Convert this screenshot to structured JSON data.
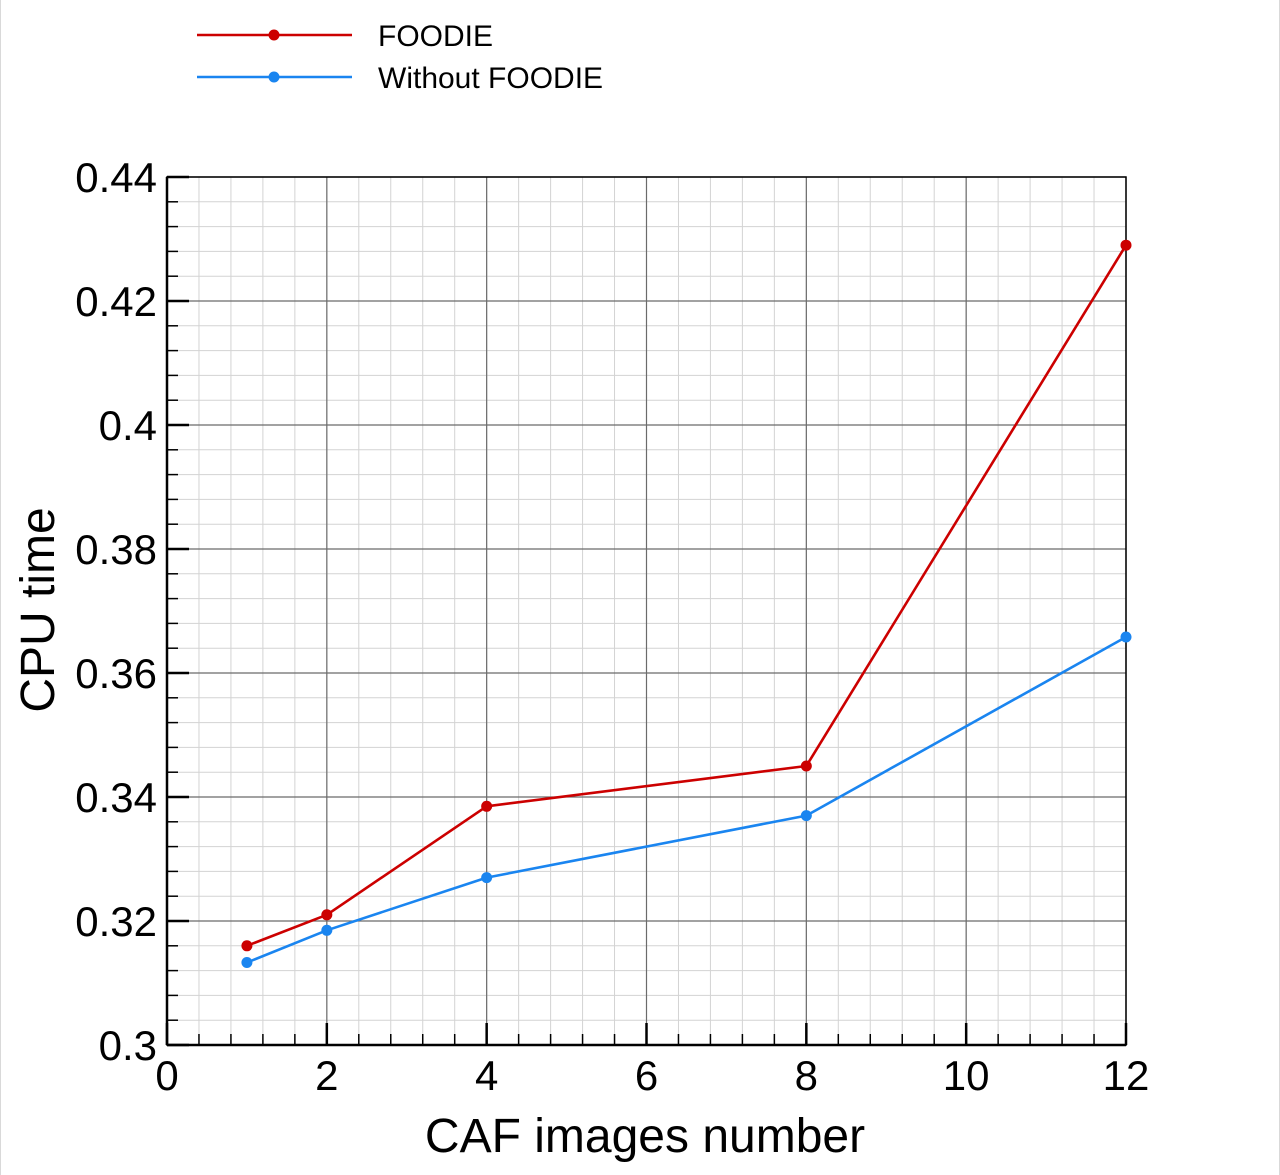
{
  "chart_data": {
    "type": "line",
    "xlabel": "CAF images number",
    "ylabel": "CPU time",
    "xlim": [
      0,
      12
    ],
    "ylim": [
      0.3,
      0.44
    ],
    "xticks": [
      "0",
      "2",
      "4",
      "6",
      "8",
      "10",
      "12"
    ],
    "yticks": [
      "0.3",
      "0.32",
      "0.34",
      "0.36",
      "0.38",
      "0.4",
      "0.42",
      "0.44"
    ],
    "x_tick_values": [
      0,
      2,
      4,
      6,
      8,
      10,
      12
    ],
    "y_tick_values": [
      0.3,
      0.32,
      0.34,
      0.36,
      0.38,
      0.4,
      0.42,
      0.44
    ],
    "x_minor_step": 0.4,
    "y_minor_step": 0.004,
    "grid": true,
    "legend_position": "top-left",
    "series": [
      {
        "name": "FOODIE",
        "color": "#cc0000",
        "marker": "circle",
        "x": [
          1,
          2,
          4,
          8,
          12
        ],
        "y": [
          0.316,
          0.321,
          0.3385,
          0.345,
          0.429
        ]
      },
      {
        "name": "Without FOODIE",
        "color": "#1a85f0",
        "marker": "circle",
        "x": [
          1,
          2,
          4,
          8,
          12
        ],
        "y": [
          0.3133,
          0.3185,
          0.327,
          0.337,
          0.3658
        ]
      }
    ]
  }
}
